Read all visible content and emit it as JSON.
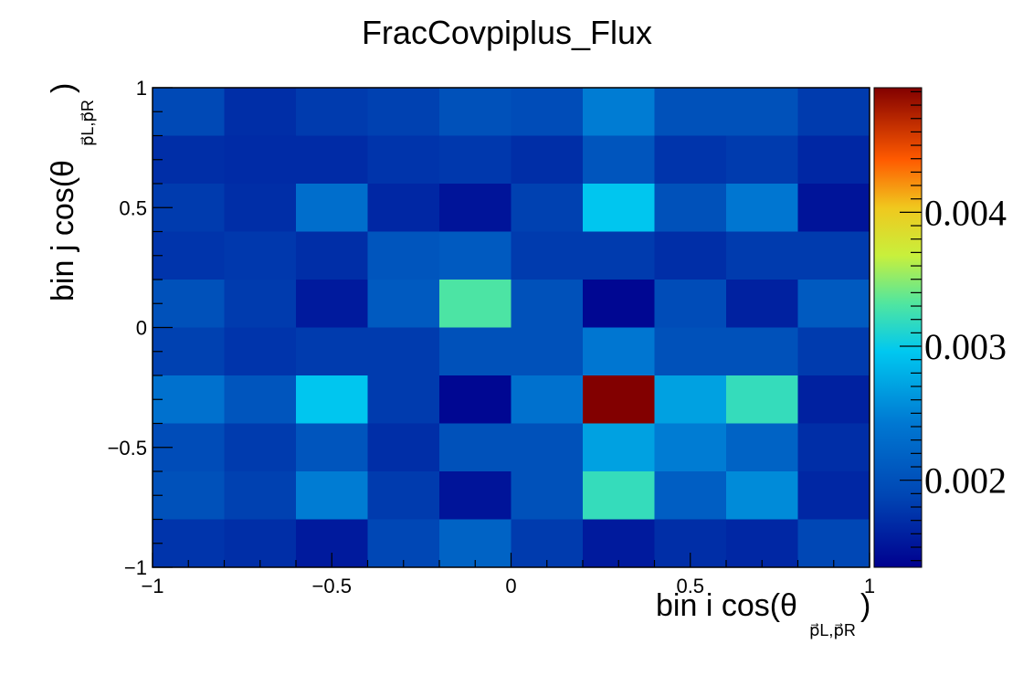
{
  "chart_data": {
    "type": "heatmap",
    "title": "FracCovpiplus_Flux",
    "xlabel": "bin i cos(θ",
    "xlabel_sub": "p⃗L,p⃗R",
    "xlabel_close": ")",
    "ylabel": "bin j cos(θ",
    "ylabel_sub": "p⃗L,p⃗R",
    "ylabel_close": ")",
    "x_range": [
      -1,
      1
    ],
    "y_range": [
      -1,
      1
    ],
    "x_ticks": [
      {
        "value": -1,
        "label": "−1"
      },
      {
        "value": -0.5,
        "label": "−0.5"
      },
      {
        "value": 0,
        "label": "0"
      },
      {
        "value": 0.5,
        "label": "0.5"
      },
      {
        "value": 1,
        "label": "1"
      }
    ],
    "y_ticks": [
      {
        "value": -1,
        "label": "−1"
      },
      {
        "value": -0.5,
        "label": "−0.5"
      },
      {
        "value": 0,
        "label": "0"
      },
      {
        "value": 0.5,
        "label": "0.5"
      },
      {
        "value": 1,
        "label": "1"
      }
    ],
    "z_range": [
      0.00135,
      0.00493
    ],
    "z_ticks": [
      {
        "value": 0.002,
        "label": "0.002"
      },
      {
        "value": 0.003,
        "label": "0.003"
      },
      {
        "value": 0.004,
        "label": "0.004"
      }
    ],
    "n_x_bins": 10,
    "n_y_bins": 10,
    "colormap": "kBird/jet",
    "values": [
      [
        0.00192,
        0.0017,
        0.0018,
        0.00185,
        0.002,
        0.00195,
        0.00245,
        0.002,
        0.002,
        0.0018
      ],
      [
        0.0017,
        0.00168,
        0.00168,
        0.00175,
        0.00178,
        0.0017,
        0.00205,
        0.00175,
        0.0018,
        0.00165
      ],
      [
        0.0018,
        0.0017,
        0.00232,
        0.00165,
        0.0015,
        0.00185,
        0.00295,
        0.002,
        0.0024,
        0.0015
      ],
      [
        0.00175,
        0.00178,
        0.0017,
        0.00205,
        0.0021,
        0.0018,
        0.0018,
        0.0017,
        0.0018,
        0.0018
      ],
      [
        0.002,
        0.0018,
        0.00155,
        0.0021,
        0.0033,
        0.002,
        0.0014,
        0.00195,
        0.0016,
        0.0021
      ],
      [
        0.00185,
        0.00175,
        0.0018,
        0.0018,
        0.002,
        0.002,
        0.0024,
        0.002,
        0.002,
        0.0018
      ],
      [
        0.00235,
        0.00205,
        0.00295,
        0.0018,
        0.0014,
        0.00235,
        0.00493,
        0.0027,
        0.0032,
        0.0016
      ],
      [
        0.00195,
        0.0018,
        0.00205,
        0.0017,
        0.002,
        0.002,
        0.0027,
        0.00245,
        0.0022,
        0.0017
      ],
      [
        0.002,
        0.00185,
        0.00245,
        0.0018,
        0.0015,
        0.002,
        0.0032,
        0.00215,
        0.00255,
        0.00165
      ],
      [
        0.00175,
        0.0017,
        0.00155,
        0.0019,
        0.0022,
        0.0018,
        0.00155,
        0.0017,
        0.00165,
        0.0019
      ]
    ]
  }
}
